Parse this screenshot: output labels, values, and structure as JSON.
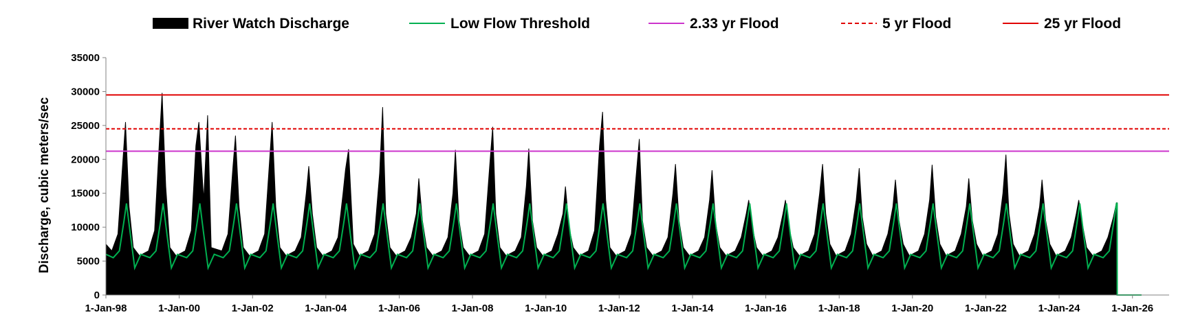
{
  "chart_data": {
    "type": "area",
    "title": "",
    "xlabel": "",
    "ylabel": "Discharge, cubic meters/sec",
    "xlim": [
      "1998-01-01",
      "2027-01-01"
    ],
    "ylim": [
      0,
      35000
    ],
    "y_ticks": [
      0,
      5000,
      10000,
      15000,
      20000,
      25000,
      30000,
      35000
    ],
    "y_tick_labels": [
      "0",
      "5000",
      "10000",
      "15000",
      "20000",
      "25000",
      "30000",
      "35000"
    ],
    "x_ticks": [
      "1998-01-01",
      "2000-01-01",
      "2002-01-01",
      "2004-01-01",
      "2006-01-01",
      "2008-01-01",
      "2010-01-01",
      "2012-01-01",
      "2014-01-01",
      "2016-01-01",
      "2018-01-01",
      "2020-01-01",
      "2022-01-01",
      "2024-01-01",
      "2026-01-01"
    ],
    "x_tick_labels": [
      "1-Jan-98",
      "1-Jan-00",
      "1-Jan-02",
      "1-Jan-04",
      "1-Jan-06",
      "1-Jan-08",
      "1-Jan-10",
      "1-Jan-12",
      "1-Jan-14",
      "1-Jan-16",
      "1-Jan-18",
      "1-Jan-20",
      "1-Jan-22",
      "1-Jan-24",
      "1-Jan-26"
    ],
    "grid": false,
    "legend_position": "top",
    "series": [
      {
        "name": "River Watch Discharge",
        "type": "area",
        "color": "#000000",
        "x": [
          "1998-01-01",
          "1998-03-01",
          "1998-05-01",
          "1998-06-20",
          "1998-07-15",
          "1998-08-20",
          "1998-10-01",
          "1998-12-01",
          "1999-03-01",
          "1999-05-01",
          "1999-06-15",
          "1999-07-15",
          "1999-08-20",
          "1999-10-01",
          "1999-12-01",
          "2000-03-01",
          "2000-05-01",
          "2000-06-15",
          "2000-07-15",
          "2000-09-01",
          "2000-10-10",
          "2000-11-15",
          "2001-03-01",
          "2001-05-01",
          "2001-06-20",
          "2001-07-15",
          "2001-08-20",
          "2001-10-01",
          "2001-12-01",
          "2002-03-01",
          "2002-05-01",
          "2002-06-20",
          "2002-07-15",
          "2002-08-20",
          "2002-10-01",
          "2002-12-01",
          "2003-03-01",
          "2003-05-01",
          "2003-06-20",
          "2003-07-15",
          "2003-08-20",
          "2003-10-01",
          "2003-12-01",
          "2004-03-01",
          "2004-05-01",
          "2004-06-20",
          "2004-07-15",
          "2004-08-15",
          "2004-10-01",
          "2004-12-01",
          "2005-03-01",
          "2005-05-01",
          "2005-06-20",
          "2005-07-20",
          "2005-08-20",
          "2005-10-01",
          "2005-12-01",
          "2006-03-01",
          "2006-05-01",
          "2006-06-20",
          "2006-07-15",
          "2006-08-20",
          "2006-10-01",
          "2006-12-01",
          "2007-03-01",
          "2007-05-01",
          "2007-06-20",
          "2007-07-15",
          "2007-08-20",
          "2007-10-01",
          "2007-12-01",
          "2008-03-01",
          "2008-05-01",
          "2008-06-20",
          "2008-07-20",
          "2008-08-20",
          "2008-10-01",
          "2008-12-01",
          "2009-03-01",
          "2009-05-01",
          "2009-06-20",
          "2009-07-15",
          "2009-08-20",
          "2009-10-01",
          "2009-12-01",
          "2010-03-01",
          "2010-05-01",
          "2010-06-20",
          "2010-07-15",
          "2010-08-20",
          "2010-10-01",
          "2010-12-01",
          "2011-03-01",
          "2011-05-01",
          "2011-06-20",
          "2011-07-20",
          "2011-08-20",
          "2011-10-01",
          "2011-12-01",
          "2012-03-01",
          "2012-05-01",
          "2012-06-15",
          "2012-07-20",
          "2012-08-20",
          "2012-10-01",
          "2012-12-01",
          "2013-03-01",
          "2013-05-01",
          "2013-06-20",
          "2013-07-15",
          "2013-08-20",
          "2013-10-01",
          "2013-12-01",
          "2014-03-01",
          "2014-05-01",
          "2014-06-20",
          "2014-07-15",
          "2014-08-20",
          "2014-10-01",
          "2014-12-01",
          "2015-03-01",
          "2015-05-01",
          "2015-06-20",
          "2015-07-15",
          "2015-08-20",
          "2015-10-01",
          "2015-12-01",
          "2016-03-01",
          "2016-05-01",
          "2016-06-20",
          "2016-07-15",
          "2016-08-20",
          "2016-10-01",
          "2016-12-01",
          "2017-03-01",
          "2017-05-01",
          "2017-06-20",
          "2017-07-20",
          "2017-08-20",
          "2017-10-01",
          "2017-12-01",
          "2018-03-01",
          "2018-05-01",
          "2018-06-20",
          "2018-07-20",
          "2018-08-20",
          "2018-10-01",
          "2018-12-01",
          "2019-03-01",
          "2019-05-01",
          "2019-06-20",
          "2019-07-15",
          "2019-08-20",
          "2019-10-01",
          "2019-12-01",
          "2020-03-01",
          "2020-05-01",
          "2020-06-20",
          "2020-07-15",
          "2020-08-20",
          "2020-10-01",
          "2020-12-01",
          "2021-03-01",
          "2021-05-01",
          "2021-06-20",
          "2021-07-15",
          "2021-08-20",
          "2021-10-01",
          "2021-12-01",
          "2022-03-01",
          "2022-05-01",
          "2022-06-20",
          "2022-07-20",
          "2022-08-20",
          "2022-10-01",
          "2022-12-01",
          "2023-03-01",
          "2023-05-01",
          "2023-06-20",
          "2023-07-15",
          "2023-08-20",
          "2023-10-01",
          "2023-12-01",
          "2024-03-01",
          "2024-05-01",
          "2024-06-20",
          "2024-07-15",
          "2024-08-20",
          "2024-10-01",
          "2024-12-01",
          "2025-03-01",
          "2025-05-01",
          "2025-06-25",
          "2025-07-25",
          "2025-08-01",
          "2025-08-02",
          "2026-04-01"
        ],
        "y": [
          7500,
          6500,
          9000,
          20000,
          25500,
          13000,
          7000,
          5800,
          6500,
          9500,
          22000,
          29800,
          16000,
          7000,
          5800,
          6500,
          9500,
          22000,
          25500,
          14000,
          26500,
          7000,
          6500,
          9000,
          19000,
          23500,
          13000,
          7000,
          5800,
          6500,
          9000,
          20000,
          25500,
          13000,
          7000,
          5800,
          6500,
          8500,
          15000,
          19000,
          12000,
          7000,
          5800,
          6500,
          8500,
          15000,
          18500,
          21500,
          7500,
          5800,
          6500,
          9000,
          18000,
          27700,
          12000,
          7000,
          5800,
          6500,
          8500,
          12000,
          17200,
          11000,
          7000,
          5800,
          6500,
          8500,
          15000,
          21400,
          11000,
          7000,
          5800,
          6500,
          9000,
          19000,
          24800,
          12000,
          7000,
          5800,
          6500,
          8500,
          16000,
          21600,
          11000,
          7000,
          5800,
          6500,
          9000,
          12000,
          16000,
          10000,
          7000,
          5800,
          6500,
          9500,
          22000,
          27000,
          14000,
          7000,
          5800,
          6500,
          9000,
          17000,
          23000,
          11000,
          7000,
          5800,
          6500,
          8500,
          15000,
          19300,
          11000,
          7000,
          5800,
          6500,
          8500,
          14000,
          18400,
          10500,
          7000,
          5800,
          6500,
          8500,
          12000,
          14000,
          10000,
          7000,
          5800,
          6500,
          8500,
          12000,
          14000,
          10000,
          7000,
          5800,
          6500,
          9000,
          15000,
          19300,
          12000,
          7500,
          5800,
          6500,
          9000,
          14000,
          18700,
          11500,
          7500,
          5800,
          6500,
          9000,
          13000,
          17000,
          11000,
          7500,
          5800,
          6500,
          9000,
          14000,
          19200,
          11500,
          7500,
          5800,
          6500,
          9000,
          13000,
          17200,
          11000,
          7500,
          5800,
          6500,
          9000,
          15000,
          20700,
          12000,
          7500,
          5800,
          6500,
          9000,
          13000,
          17000,
          11000,
          7500,
          5800,
          6500,
          8500,
          12000,
          14000,
          10500,
          7000,
          5800,
          6500,
          8500,
          11500,
          13600,
          13600,
          0,
          0
        ]
      },
      {
        "name": "Low Flow Threshold",
        "type": "line",
        "color": "#00B050",
        "x": [
          "1998-01-01",
          "1998-03-15",
          "1998-05-15",
          "1998-07-01",
          "1998-07-25",
          "1998-09-01",
          "1998-10-15",
          "1998-12-15",
          "1999-03-15",
          "1999-05-15",
          "1999-07-01",
          "1999-07-25",
          "1999-09-01",
          "1999-10-15",
          "1999-12-15",
          "2000-03-15",
          "2000-05-15",
          "2000-07-01",
          "2000-07-25",
          "2000-09-01",
          "2000-10-15",
          "2000-12-15",
          "2001-03-15",
          "2001-05-15",
          "2001-07-01",
          "2001-07-25",
          "2001-09-01",
          "2001-10-15",
          "2001-12-15",
          "2002-03-15",
          "2002-05-15",
          "2002-07-01",
          "2002-07-25",
          "2002-09-01",
          "2002-10-15",
          "2002-12-15",
          "2003-03-15",
          "2003-05-15",
          "2003-07-01",
          "2003-07-25",
          "2003-09-01",
          "2003-10-15",
          "2003-12-15",
          "2004-03-15",
          "2004-05-15",
          "2004-07-01",
          "2004-07-25",
          "2004-09-01",
          "2004-10-15",
          "2004-12-15",
          "2005-03-15",
          "2005-05-15",
          "2005-07-01",
          "2005-07-25",
          "2005-09-01",
          "2005-10-15",
          "2005-12-15",
          "2006-03-15",
          "2006-05-15",
          "2006-07-01",
          "2006-07-25",
          "2006-09-01",
          "2006-10-15",
          "2006-12-15",
          "2007-03-15",
          "2007-05-15",
          "2007-07-01",
          "2007-07-25",
          "2007-09-01",
          "2007-10-15",
          "2007-12-15",
          "2008-03-15",
          "2008-05-15",
          "2008-07-01",
          "2008-07-25",
          "2008-09-01",
          "2008-10-15",
          "2008-12-15",
          "2009-03-15",
          "2009-05-15",
          "2009-07-01",
          "2009-07-25",
          "2009-09-01",
          "2009-10-15",
          "2009-12-15",
          "2010-03-15",
          "2010-05-15",
          "2010-07-01",
          "2010-07-25",
          "2010-09-01",
          "2010-10-15",
          "2010-12-15",
          "2011-03-15",
          "2011-05-15",
          "2011-07-01",
          "2011-07-25",
          "2011-09-01",
          "2011-10-15",
          "2011-12-15",
          "2012-03-15",
          "2012-05-15",
          "2012-07-01",
          "2012-07-25",
          "2012-09-01",
          "2012-10-15",
          "2012-12-15",
          "2013-03-15",
          "2013-05-15",
          "2013-07-01",
          "2013-07-25",
          "2013-09-01",
          "2013-10-15",
          "2013-12-15",
          "2014-03-15",
          "2014-05-15",
          "2014-07-01",
          "2014-07-25",
          "2014-09-01",
          "2014-10-15",
          "2014-12-15",
          "2015-03-15",
          "2015-05-15",
          "2015-07-01",
          "2015-07-25",
          "2015-09-01",
          "2015-10-15",
          "2015-12-15",
          "2016-03-15",
          "2016-05-15",
          "2016-07-01",
          "2016-07-25",
          "2016-09-01",
          "2016-10-15",
          "2016-12-15",
          "2017-03-15",
          "2017-05-15",
          "2017-07-01",
          "2017-07-25",
          "2017-09-01",
          "2017-10-15",
          "2017-12-15",
          "2018-03-15",
          "2018-05-15",
          "2018-07-01",
          "2018-07-25",
          "2018-09-01",
          "2018-10-15",
          "2018-12-15",
          "2019-03-15",
          "2019-05-15",
          "2019-07-01",
          "2019-07-25",
          "2019-09-01",
          "2019-10-15",
          "2019-12-15",
          "2020-03-15",
          "2020-05-15",
          "2020-07-01",
          "2020-07-25",
          "2020-09-01",
          "2020-10-15",
          "2020-12-15",
          "2021-03-15",
          "2021-05-15",
          "2021-07-01",
          "2021-07-25",
          "2021-09-01",
          "2021-10-15",
          "2021-12-15",
          "2022-03-15",
          "2022-05-15",
          "2022-07-01",
          "2022-07-25",
          "2022-09-01",
          "2022-10-15",
          "2022-12-15",
          "2023-03-15",
          "2023-05-15",
          "2023-07-01",
          "2023-07-25",
          "2023-09-01",
          "2023-10-15",
          "2023-12-15",
          "2024-03-15",
          "2024-05-15",
          "2024-07-01",
          "2024-07-25",
          "2024-09-01",
          "2024-10-15",
          "2024-12-15",
          "2025-03-15",
          "2025-05-15",
          "2025-07-01",
          "2025-07-25",
          "2025-08-01",
          "2025-08-02",
          "2026-04-01"
        ],
        "y": [
          6000,
          5500,
          6500,
          11000,
          13500,
          9000,
          4000,
          6000,
          5500,
          6500,
          11000,
          13500,
          9000,
          4000,
          6000,
          5500,
          6500,
          11000,
          13500,
          9000,
          4000,
          6000,
          5500,
          6500,
          11000,
          13500,
          9000,
          4000,
          6000,
          5500,
          6500,
          11000,
          13500,
          9000,
          4000,
          6000,
          5500,
          6500,
          11000,
          13500,
          9000,
          4000,
          6000,
          5500,
          6500,
          11000,
          13500,
          9000,
          4000,
          6000,
          5500,
          6500,
          11000,
          13500,
          9000,
          4000,
          6000,
          5500,
          6500,
          11000,
          13500,
          9000,
          4000,
          6000,
          5500,
          6500,
          11000,
          13500,
          9000,
          4000,
          6000,
          5500,
          6500,
          11000,
          13500,
          9000,
          4000,
          6000,
          5500,
          6500,
          11000,
          13500,
          9000,
          4000,
          6000,
          5500,
          6500,
          11000,
          13500,
          9000,
          4000,
          6000,
          5500,
          6500,
          11000,
          13500,
          9000,
          4000,
          6000,
          5500,
          6500,
          11000,
          13500,
          9000,
          4000,
          6000,
          5500,
          6500,
          11000,
          13500,
          9000,
          4000,
          6000,
          5500,
          6500,
          11000,
          13500,
          9000,
          4000,
          6000,
          5500,
          6500,
          11000,
          13500,
          9000,
          4000,
          6000,
          5500,
          6500,
          11000,
          13500,
          9000,
          4000,
          6000,
          5500,
          6500,
          11000,
          13500,
          9000,
          4000,
          6000,
          5500,
          6500,
          11000,
          13500,
          9000,
          4000,
          6000,
          5500,
          6500,
          11000,
          13500,
          9000,
          4000,
          6000,
          5500,
          6500,
          11000,
          13500,
          9000,
          4000,
          6000,
          5500,
          6500,
          11000,
          13500,
          9000,
          4000,
          6000,
          5500,
          6500,
          11000,
          13500,
          9000,
          4000,
          6000,
          5500,
          6500,
          11000,
          13500,
          9000,
          4000,
          6000,
          5500,
          6500,
          11000,
          13500,
          9000,
          4000,
          6000,
          5500,
          6500,
          11000,
          13500,
          13500,
          0,
          0
        ]
      },
      {
        "name": "2.33 yr Flood",
        "type": "hline",
        "color": "#CC33CC",
        "dash": "solid",
        "y": 21200
      },
      {
        "name": "5 yr Flood",
        "type": "hline",
        "color": "#E00000",
        "dash": "dashed",
        "y": 24500
      },
      {
        "name": "25 yr Flood",
        "type": "hline",
        "color": "#E00000",
        "dash": "solid",
        "y": 29500
      }
    ]
  }
}
